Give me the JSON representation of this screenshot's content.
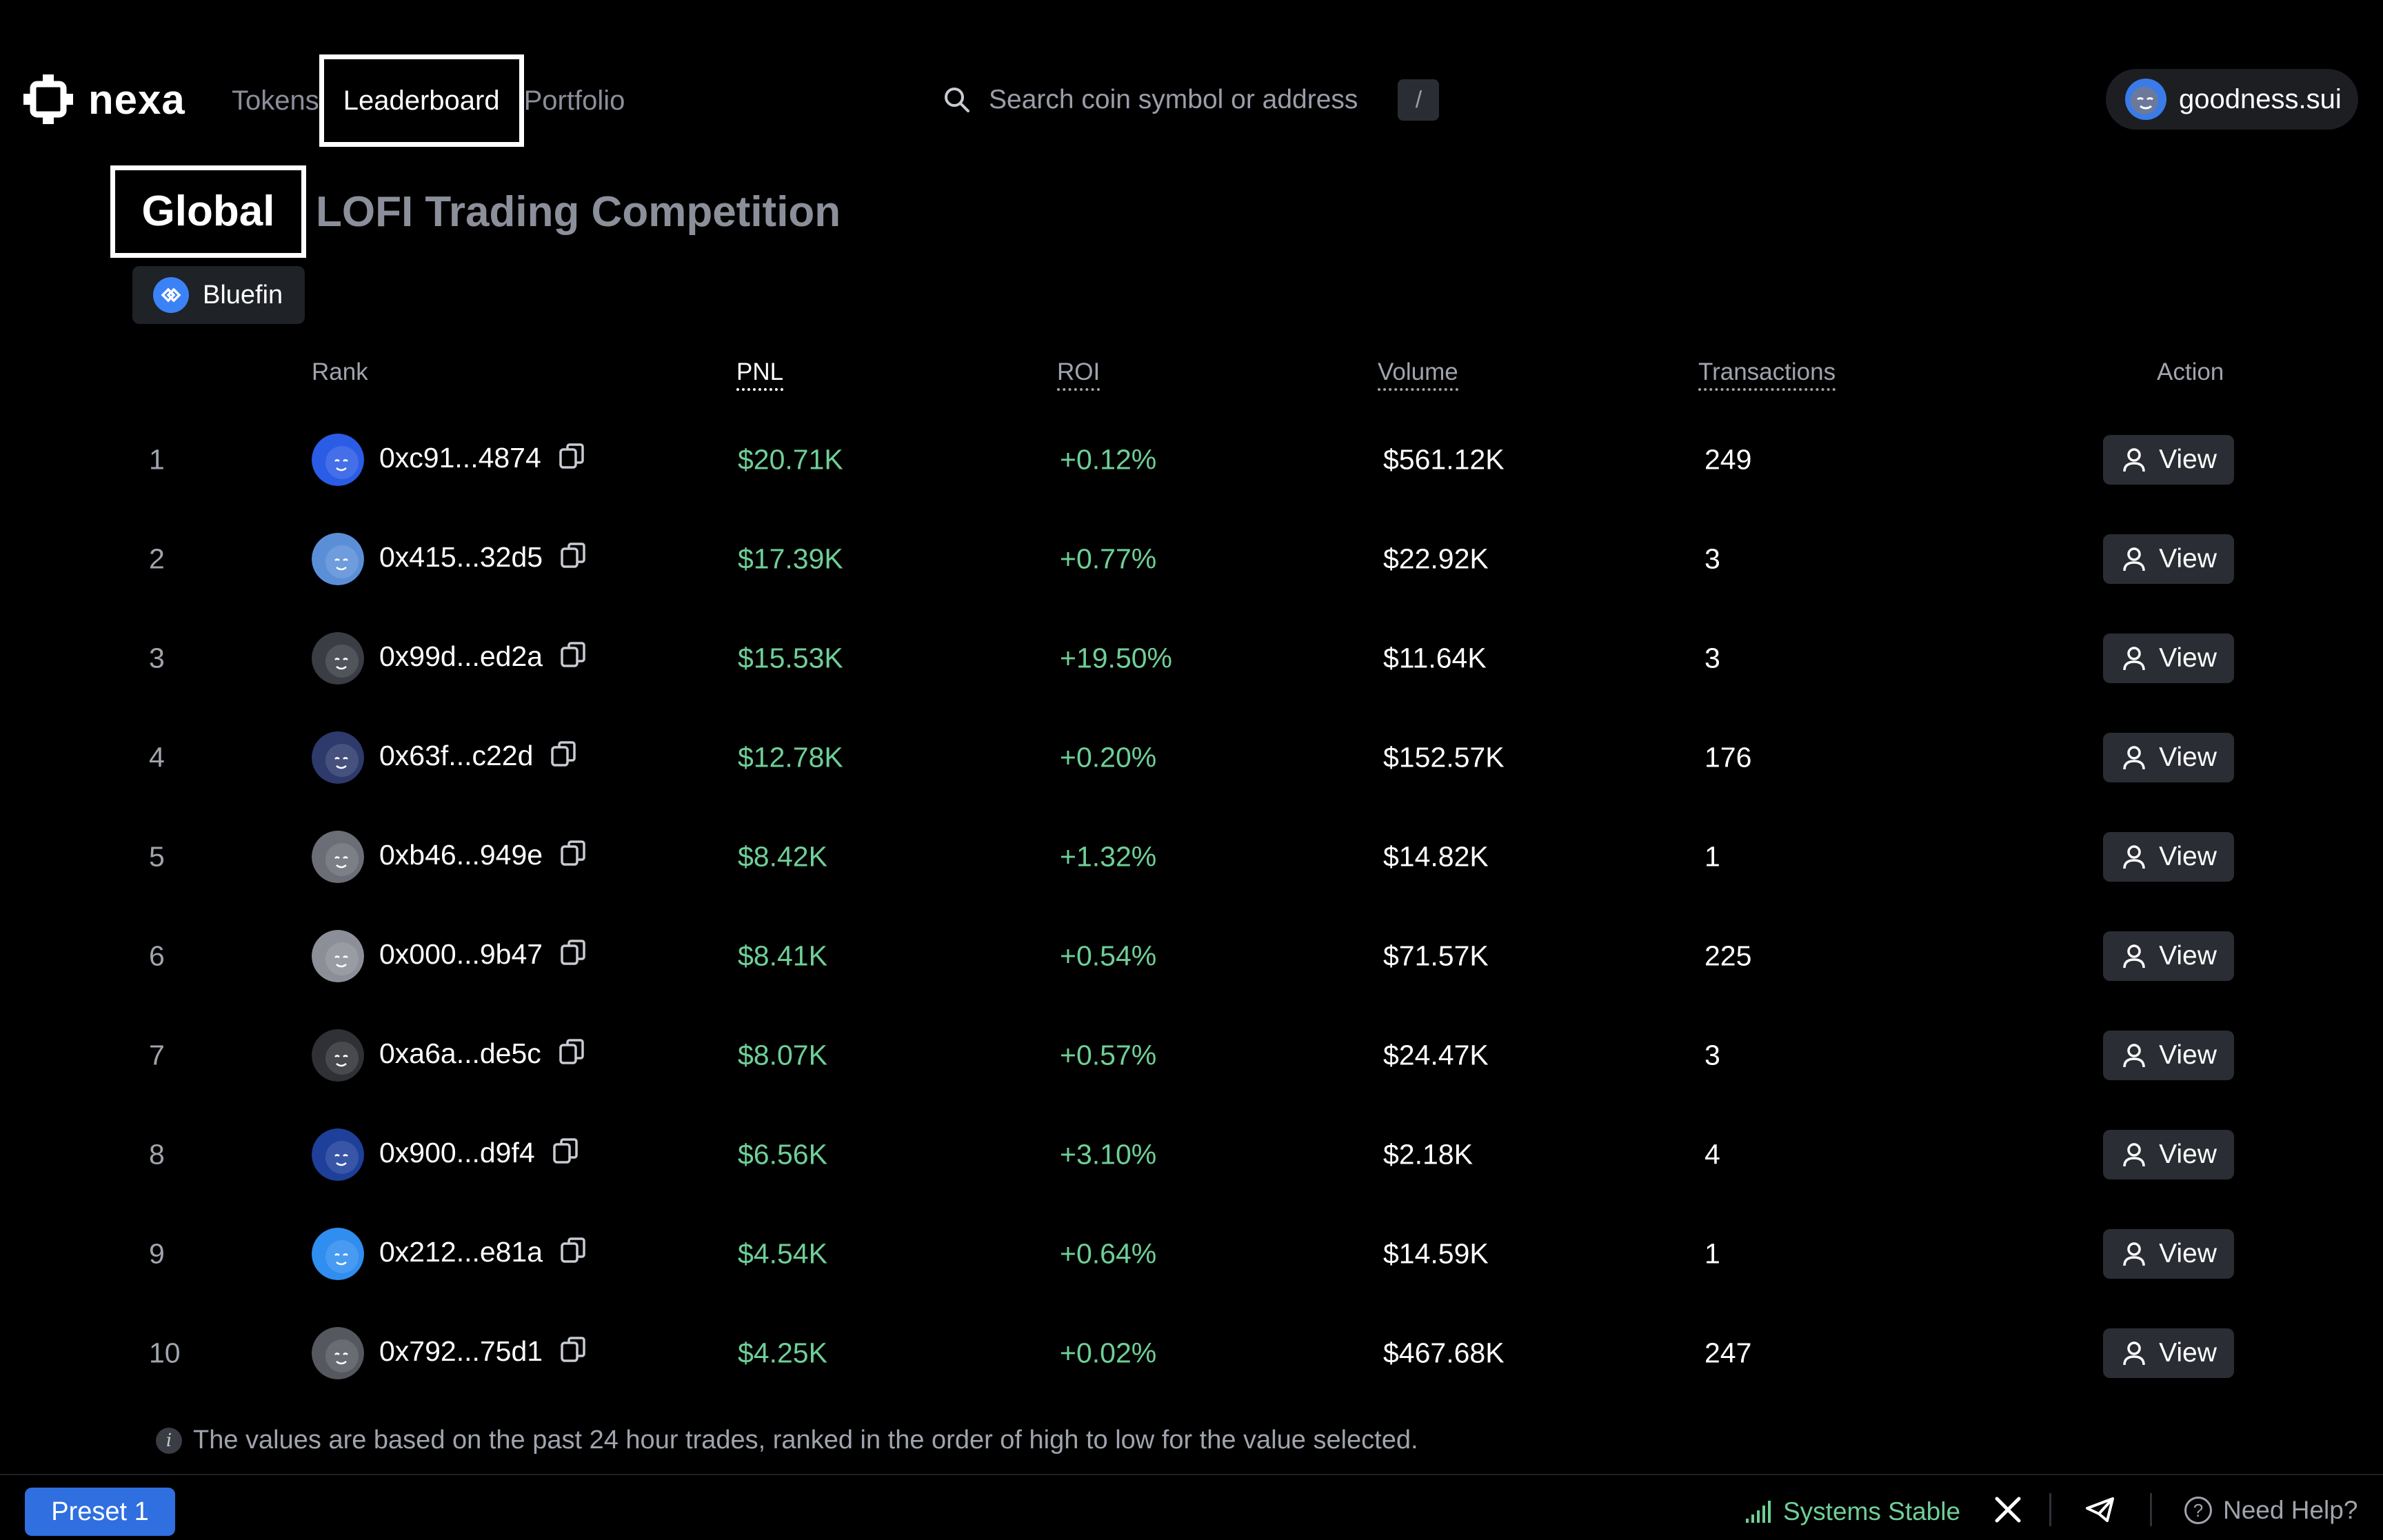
{
  "app": {
    "logo_text": "nexa"
  },
  "nav": {
    "tokens": "Tokens",
    "leaderboard": "Leaderboard",
    "portfolio": "Portfolio"
  },
  "search": {
    "placeholder": "Search coin symbol or address",
    "shortcut": "/"
  },
  "user": {
    "name": "goodness.sui"
  },
  "tabs": {
    "global": "Global",
    "competition": "LOFI Trading Competition"
  },
  "exchange_badge": {
    "label": "Bluefin"
  },
  "table": {
    "headers": {
      "rank": "Rank",
      "pnl": "PNL",
      "roi": "ROI",
      "volume": "Volume",
      "transactions": "Transactions",
      "action": "Action"
    },
    "view_label": "View",
    "rows": [
      {
        "rank": "1",
        "address": "0xc91...4874",
        "pnl": "$20.71K",
        "roi": "+0.12%",
        "volume": "$561.12K",
        "transactions": "249"
      },
      {
        "rank": "2",
        "address": "0x415...32d5",
        "pnl": "$17.39K",
        "roi": "+0.77%",
        "volume": "$22.92K",
        "transactions": "3"
      },
      {
        "rank": "3",
        "address": "0x99d...ed2a",
        "pnl": "$15.53K",
        "roi": "+19.50%",
        "volume": "$11.64K",
        "transactions": "3"
      },
      {
        "rank": "4",
        "address": "0x63f...c22d",
        "pnl": "$12.78K",
        "roi": "+0.20%",
        "volume": "$152.57K",
        "transactions": "176"
      },
      {
        "rank": "5",
        "address": "0xb46...949e",
        "pnl": "$8.42K",
        "roi": "+1.32%",
        "volume": "$14.82K",
        "transactions": "1"
      },
      {
        "rank": "6",
        "address": "0x000...9b47",
        "pnl": "$8.41K",
        "roi": "+0.54%",
        "volume": "$71.57K",
        "transactions": "225"
      },
      {
        "rank": "7",
        "address": "0xa6a...de5c",
        "pnl": "$8.07K",
        "roi": "+0.57%",
        "volume": "$24.47K",
        "transactions": "3"
      },
      {
        "rank": "8",
        "address": "0x900...d9f4",
        "pnl": "$6.56K",
        "roi": "+3.10%",
        "volume": "$2.18K",
        "transactions": "4"
      },
      {
        "rank": "9",
        "address": "0x212...e81a",
        "pnl": "$4.54K",
        "roi": "+0.64%",
        "volume": "$14.59K",
        "transactions": "1"
      },
      {
        "rank": "10",
        "address": "0x792...75d1",
        "pnl": "$4.25K",
        "roi": "+0.02%",
        "volume": "$467.68K",
        "transactions": "247"
      }
    ]
  },
  "note": "The values are based on the past 24 hour trades, ranked in the order of high to low for the value selected.",
  "footer": {
    "preset": "Preset 1",
    "status": "Systems Stable",
    "help": "Need Help?"
  },
  "colors": {
    "positive": "#6fcf97",
    "accent": "#2f6fe0",
    "avatar": [
      "#2b5ce6",
      "#5a8fd8",
      "#3a3d44",
      "#2d3a6b",
      "#6b6e76",
      "#8c8f98",
      "#2f3136",
      "#1e3f9a",
      "#2f8ef0",
      "#55585f"
    ]
  }
}
